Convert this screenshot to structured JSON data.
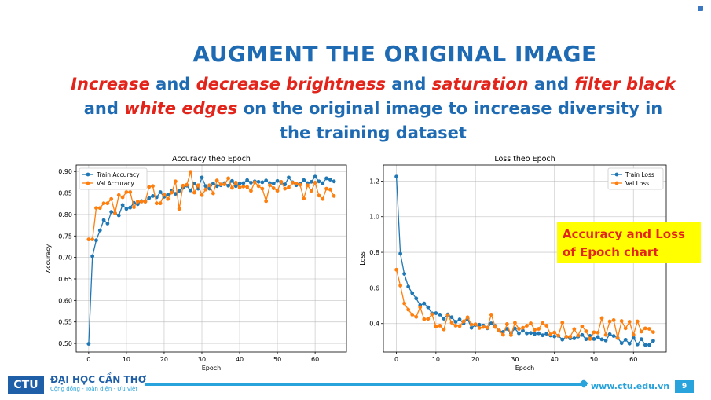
{
  "slide": {
    "title": "AUGMENT THE ORIGINAL IMAGE",
    "subtitle_parts": [
      {
        "text": "Increase",
        "hl": true
      },
      {
        "text": " and ",
        "hl": false
      },
      {
        "text": "decrease brightness",
        "hl": true
      },
      {
        "text": " and ",
        "hl": false
      },
      {
        "text": "saturation",
        "hl": true
      },
      {
        "text": " and ",
        "hl": false
      },
      {
        "text": "filter black",
        "hl": true
      },
      {
        "text": " and ",
        "hl": false
      },
      {
        "text": "white edges",
        "hl": true
      },
      {
        "text": " on the original image to increase diversity in the training dataset",
        "hl": false
      }
    ],
    "callout": "Accuracy and Loss of Epoch chart",
    "footer": {
      "logo": "CTU",
      "university": "ĐẠI HỌC CẦN THƠ",
      "slogan": "Cộng đồng - Toàn diện - Ưu việt",
      "url": "www.ctu.edu.vn",
      "page": "9"
    },
    "colors": {
      "title": "#1f6bb3",
      "highlight": "#e3241b",
      "callout_bg": "#ffff00",
      "train": "#1f77b4",
      "val": "#ff7f0e"
    }
  },
  "chart_data": [
    {
      "type": "line",
      "title": "Accuracy theo Epoch",
      "xlabel": "Epoch",
      "ylabel": "Accuracy",
      "xlim": [
        -3.3,
        68.3
      ],
      "ylim": [
        0.48,
        0.915
      ],
      "xticks": [
        "0",
        "10",
        "20",
        "30",
        "40",
        "50",
        "60"
      ],
      "yticks": [
        "0.50",
        "0.55",
        "0.60",
        "0.65",
        "0.70",
        "0.75",
        "0.80",
        "0.85",
        "0.90"
      ],
      "legend": "top-left",
      "grid": true,
      "x": [
        0,
        1,
        2,
        3,
        4,
        5,
        6,
        7,
        8,
        9,
        10,
        11,
        12,
        13,
        14,
        15,
        16,
        17,
        18,
        19,
        20,
        21,
        22,
        23,
        24,
        25,
        26,
        27,
        28,
        29,
        30,
        31,
        32,
        33,
        34,
        35,
        36,
        37,
        38,
        39,
        40,
        41,
        42,
        43,
        44,
        45,
        46,
        47,
        48,
        49,
        50,
        51,
        52,
        53,
        54,
        55,
        56,
        57,
        58,
        59,
        60,
        61,
        62,
        63,
        64,
        65
      ],
      "series": [
        {
          "name": "Train Accuracy",
          "values": [
            0.499,
            0.703,
            0.74,
            0.763,
            0.787,
            0.779,
            0.806,
            0.803,
            0.798,
            0.822,
            0.813,
            0.816,
            0.827,
            0.824,
            0.831,
            0.83,
            0.838,
            0.843,
            0.84,
            0.852,
            0.841,
            0.846,
            0.855,
            0.848,
            0.855,
            0.862,
            0.867,
            0.856,
            0.872,
            0.86,
            0.886,
            0.866,
            0.86,
            0.872,
            0.866,
            0.868,
            0.873,
            0.867,
            0.878,
            0.866,
            0.872,
            0.873,
            0.88,
            0.874,
            0.877,
            0.876,
            0.875,
            0.879,
            0.873,
            0.872,
            0.878,
            0.874,
            0.87,
            0.886,
            0.875,
            0.868,
            0.872,
            0.88,
            0.873,
            0.876,
            0.888,
            0.877,
            0.873,
            0.884,
            0.881,
            0.877
          ]
        },
        {
          "name": "Val Accuracy",
          "values": [
            0.742,
            0.742,
            0.815,
            0.815,
            0.826,
            0.826,
            0.836,
            0.803,
            0.845,
            0.84,
            0.852,
            0.852,
            0.817,
            0.83,
            0.83,
            0.83,
            0.864,
            0.866,
            0.826,
            0.826,
            0.846,
            0.836,
            0.851,
            0.877,
            0.813,
            0.867,
            0.869,
            0.899,
            0.851,
            0.868,
            0.845,
            0.858,
            0.868,
            0.849,
            0.879,
            0.87,
            0.87,
            0.884,
            0.862,
            0.874,
            0.863,
            0.865,
            0.864,
            0.855,
            0.875,
            0.866,
            0.86,
            0.831,
            0.868,
            0.861,
            0.855,
            0.876,
            0.86,
            0.863,
            0.874,
            0.872,
            0.869,
            0.837,
            0.868,
            0.855,
            0.874,
            0.844,
            0.836,
            0.86,
            0.858,
            0.843
          ]
        }
      ]
    },
    {
      "type": "line",
      "title": "Loss theo Epoch",
      "xlabel": "Epoch",
      "ylabel": "Loss",
      "xlim": [
        -3.3,
        68.3
      ],
      "ylim": [
        0.24,
        1.29
      ],
      "xticks": [
        "0",
        "10",
        "20",
        "30",
        "40",
        "50",
        "60"
      ],
      "yticks": [
        "0.4",
        "0.6",
        "0.8",
        "1.0",
        "1.2"
      ],
      "legend": "top-right",
      "grid": true,
      "x": [
        0,
        1,
        2,
        3,
        4,
        5,
        6,
        7,
        8,
        9,
        10,
        11,
        12,
        13,
        14,
        15,
        16,
        17,
        18,
        19,
        20,
        21,
        22,
        23,
        24,
        25,
        26,
        27,
        28,
        29,
        30,
        31,
        32,
        33,
        34,
        35,
        36,
        37,
        38,
        39,
        40,
        41,
        42,
        43,
        44,
        45,
        46,
        47,
        48,
        49,
        50,
        51,
        52,
        53,
        54,
        55,
        56,
        57,
        58,
        59,
        60,
        61,
        62,
        63,
        64,
        65
      ],
      "series": [
        {
          "name": "Train Loss",
          "values": [
            1.225,
            0.792,
            0.679,
            0.607,
            0.571,
            0.541,
            0.503,
            0.513,
            0.491,
            0.457,
            0.458,
            0.45,
            0.427,
            0.451,
            0.435,
            0.41,
            0.423,
            0.401,
            0.427,
            0.376,
            0.392,
            0.393,
            0.389,
            0.373,
            0.401,
            0.387,
            0.36,
            0.353,
            0.37,
            0.346,
            0.372,
            0.345,
            0.36,
            0.345,
            0.347,
            0.342,
            0.345,
            0.334,
            0.343,
            0.333,
            0.328,
            0.331,
            0.31,
            0.326,
            0.316,
            0.317,
            0.327,
            0.336,
            0.312,
            0.331,
            0.313,
            0.325,
            0.311,
            0.305,
            0.34,
            0.33,
            0.319,
            0.29,
            0.309,
            0.287,
            0.32,
            0.283,
            0.312,
            0.28,
            0.28,
            0.303
          ]
        },
        {
          "name": "Val Loss",
          "values": [
            0.702,
            0.613,
            0.513,
            0.478,
            0.45,
            0.437,
            0.492,
            0.424,
            0.426,
            0.452,
            0.383,
            0.388,
            0.367,
            0.448,
            0.405,
            0.388,
            0.386,
            0.412,
            0.435,
            0.394,
            0.396,
            0.375,
            0.381,
            0.376,
            0.45,
            0.381,
            0.361,
            0.337,
            0.397,
            0.335,
            0.404,
            0.37,
            0.376,
            0.388,
            0.401,
            0.365,
            0.37,
            0.402,
            0.388,
            0.339,
            0.35,
            0.332,
            0.405,
            0.326,
            0.326,
            0.369,
            0.333,
            0.384,
            0.357,
            0.313,
            0.351,
            0.349,
            0.43,
            0.336,
            0.412,
            0.419,
            0.318,
            0.414,
            0.373,
            0.41,
            0.337,
            0.412,
            0.355,
            0.373,
            0.37,
            0.352
          ]
        }
      ]
    }
  ]
}
